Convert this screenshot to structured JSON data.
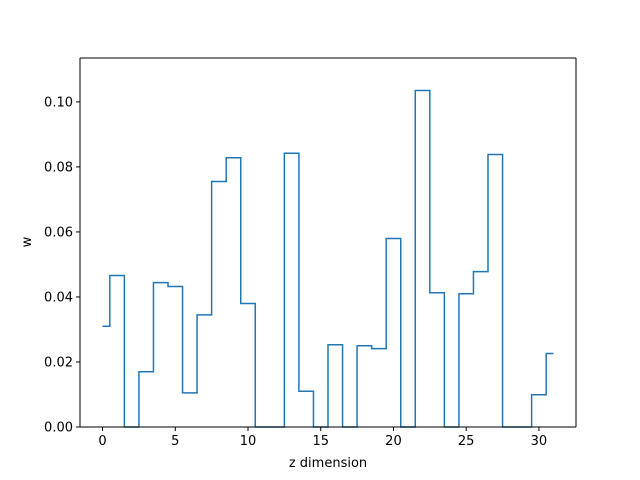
{
  "chart_data": {
    "type": "line",
    "drawstyle": "steps-mid",
    "xlabel": "z dimension",
    "ylabel": "w",
    "xlim": [
      -1.55,
      32.55
    ],
    "ylim": [
      0.0,
      0.1135
    ],
    "xticks": [
      0,
      5,
      10,
      15,
      20,
      25,
      30
    ],
    "yticks": [
      0.0,
      0.02,
      0.04,
      0.06,
      0.08,
      0.1
    ],
    "ytick_labels": [
      "0.00",
      "0.02",
      "0.04",
      "0.06",
      "0.08",
      "0.10"
    ],
    "line_color": "#1f77b4",
    "grid": false,
    "series": [
      {
        "x": [
          0,
          1,
          2,
          3,
          4,
          5,
          6,
          7,
          8,
          9,
          10,
          11,
          12,
          13,
          14,
          15,
          16,
          17,
          18,
          19,
          20,
          21,
          22,
          23,
          24,
          25,
          26,
          27,
          28,
          29,
          30,
          31
        ],
        "values": [
          0.031,
          0.0466,
          0.0,
          0.017,
          0.0444,
          0.0432,
          0.0105,
          0.0345,
          0.0755,
          0.0828,
          0.038,
          0.0,
          0.0,
          0.0842,
          0.011,
          0.0,
          0.0253,
          0.0,
          0.025,
          0.0241,
          0.058,
          0.0,
          0.1035,
          0.0413,
          0.0,
          0.041,
          0.0478,
          0.0838,
          0.0,
          0.0,
          0.0099,
          0.0226
        ]
      }
    ]
  }
}
